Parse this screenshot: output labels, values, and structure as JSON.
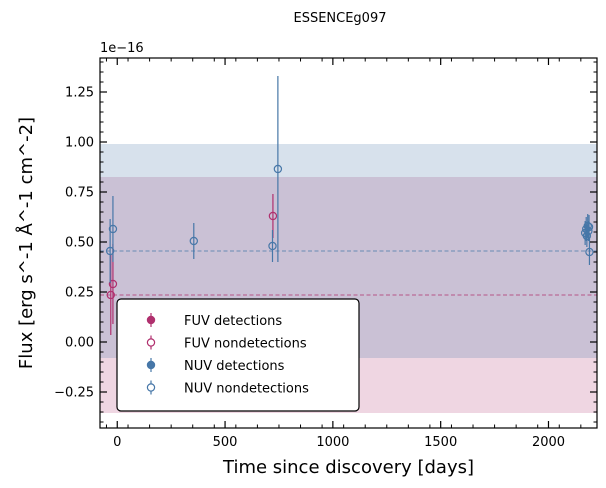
{
  "chart_data": {
    "type": "scatter",
    "title": "ESSENCEg097",
    "xlabel": "Time since discovery [days]",
    "ylabel": "Flux [erg s^-1 Å^-1 cm^-2]",
    "y_offset_label": "1e−16",
    "xlim": [
      -80,
      2225
    ],
    "ylim": [
      -0.43,
      1.42
    ],
    "x_ticks": [
      0,
      500,
      1000,
      1500,
      2000
    ],
    "x_tick_labels": [
      "0",
      "500",
      "1000",
      "1500",
      "2000"
    ],
    "y_ticks": [
      -0.25,
      0.0,
      0.25,
      0.5,
      0.75,
      1.0,
      1.25
    ],
    "y_tick_labels": [
      "−0.25",
      "0.00",
      "0.25",
      "0.50",
      "0.75",
      "1.00",
      "1.25"
    ],
    "grid": false,
    "legend_position": "lower-left",
    "colors": {
      "fuv": "#B0306E",
      "nuv": "#4777A8"
    },
    "bands": [
      {
        "name": "FUV",
        "mean": 0.235,
        "lower": -0.355,
        "upper": 0.825,
        "color": "#B0306E",
        "opacity": 0.2
      },
      {
        "name": "NUV",
        "mean": 0.455,
        "lower": -0.08,
        "upper": 0.99,
        "color": "#4777A8",
        "opacity": 0.22
      }
    ],
    "series": [
      {
        "name": "FUV detections",
        "marker": "filled",
        "color": "#B0306E",
        "points": []
      },
      {
        "name": "FUV nondetections",
        "marker": "open",
        "color": "#B0306E",
        "points": [
          {
            "x": -30,
            "y": 0.235,
            "err": 0.2
          },
          {
            "x": -20,
            "y": 0.29,
            "err": 0.2
          },
          {
            "x": 722,
            "y": 0.63,
            "err": 0.11
          }
        ]
      },
      {
        "name": "NUV detections",
        "marker": "filled",
        "color": "#4777A8",
        "points": []
      },
      {
        "name": "NUV nondetections",
        "marker": "open",
        "color": "#4777A8",
        "points": [
          {
            "x": -33,
            "y": 0.455,
            "err": 0.16
          },
          {
            "x": -20,
            "y": 0.565,
            "err": 0.165
          },
          {
            "x": 355,
            "y": 0.505,
            "err": 0.09
          },
          {
            "x": 720,
            "y": 0.48,
            "err": 0.08
          },
          {
            "x": 745,
            "y": 0.865,
            "err": 0.465
          },
          {
            "x": 2170,
            "y": 0.545,
            "err": 0.06
          },
          {
            "x": 2175,
            "y": 0.565,
            "err": 0.06
          },
          {
            "x": 2178,
            "y": 0.53,
            "err": 0.055
          },
          {
            "x": 2182,
            "y": 0.58,
            "err": 0.06
          },
          {
            "x": 2185,
            "y": 0.555,
            "err": 0.05
          },
          {
            "x": 2188,
            "y": 0.575,
            "err": 0.06
          },
          {
            "x": 2190,
            "y": 0.45,
            "err": 0.065
          }
        ]
      }
    ]
  }
}
